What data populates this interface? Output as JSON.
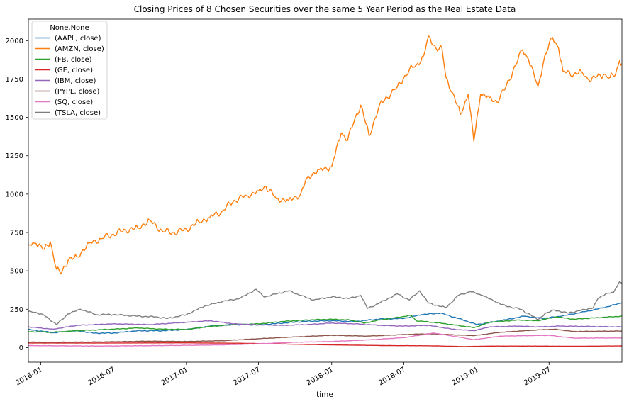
{
  "chart_data": {
    "type": "line",
    "title": "Closing Prices of 8 Chosen Securities over the same 5 Year Period as the Real Estate Data",
    "xlabel": "time",
    "ylabel": "",
    "xlim": [
      "2015-12-01",
      "2019-12-31"
    ],
    "ylim": [
      -95,
      2140
    ],
    "yticks": [
      0,
      250,
      500,
      750,
      1000,
      1250,
      1500,
      1750,
      2000
    ],
    "xticks": [
      "2016-01",
      "2016-07",
      "2017-01",
      "2017-07",
      "2018-01",
      "2018-07",
      "2019-01",
      "2019-07"
    ],
    "grid": false,
    "legend": {
      "title": "None,None",
      "position": "top-left"
    },
    "series": [
      {
        "name": "(AAPL, close)",
        "color": "#1f77b4",
        "points": [
          [
            "2015-12-01",
            118
          ],
          [
            "2016-02-01",
            97
          ],
          [
            "2016-04-01",
            110
          ],
          [
            "2016-05-15",
            94
          ],
          [
            "2016-07-01",
            95
          ],
          [
            "2016-09-01",
            110
          ],
          [
            "2016-11-01",
            110
          ],
          [
            "2017-01-01",
            118
          ],
          [
            "2017-03-01",
            140
          ],
          [
            "2017-05-01",
            150
          ],
          [
            "2017-07-01",
            148
          ],
          [
            "2017-09-01",
            160
          ],
          [
            "2017-11-01",
            172
          ],
          [
            "2018-01-01",
            175
          ],
          [
            "2018-03-01",
            170
          ],
          [
            "2018-05-01",
            186
          ],
          [
            "2018-07-01",
            190
          ],
          [
            "2018-08-15",
            215
          ],
          [
            "2018-10-01",
            225
          ],
          [
            "2018-11-15",
            190
          ],
          [
            "2019-01-01",
            150
          ],
          [
            "2019-03-01",
            175
          ],
          [
            "2019-05-01",
            205
          ],
          [
            "2019-06-15",
            190
          ],
          [
            "2019-08-01",
            205
          ],
          [
            "2019-10-01",
            235
          ],
          [
            "2019-11-15",
            260
          ],
          [
            "2019-12-31",
            292
          ]
        ]
      },
      {
        "name": "(AMZN, close)",
        "color": "#ff7f0e",
        "points": [
          [
            "2015-12-01",
            670
          ],
          [
            "2015-12-20",
            680
          ],
          [
            "2016-01-10",
            640
          ],
          [
            "2016-01-25",
            690
          ],
          [
            "2016-02-10",
            510
          ],
          [
            "2016-02-20",
            480
          ],
          [
            "2016-03-10",
            570
          ],
          [
            "2016-04-01",
            590
          ],
          [
            "2016-05-01",
            680
          ],
          [
            "2016-06-01",
            710
          ],
          [
            "2016-07-01",
            740
          ],
          [
            "2016-08-01",
            765
          ],
          [
            "2016-09-01",
            780
          ],
          [
            "2016-10-01",
            830
          ],
          [
            "2016-11-01",
            760
          ],
          [
            "2016-12-01",
            750
          ],
          [
            "2017-01-01",
            770
          ],
          [
            "2017-02-01",
            820
          ],
          [
            "2017-03-01",
            850
          ],
          [
            "2017-04-01",
            890
          ],
          [
            "2017-05-01",
            960
          ],
          [
            "2017-06-01",
            990
          ],
          [
            "2017-07-01",
            1020
          ],
          [
            "2017-07-20",
            1050
          ],
          [
            "2017-08-15",
            970
          ],
          [
            "2017-09-15",
            960
          ],
          [
            "2017-10-15",
            1000
          ],
          [
            "2017-11-01",
            1110
          ],
          [
            "2017-12-01",
            1160
          ],
          [
            "2018-01-01",
            1180
          ],
          [
            "2018-01-25",
            1400
          ],
          [
            "2018-02-10",
            1350
          ],
          [
            "2018-03-01",
            1500
          ],
          [
            "2018-03-15",
            1580
          ],
          [
            "2018-04-05",
            1380
          ],
          [
            "2018-05-01",
            1580
          ],
          [
            "2018-06-15",
            1700
          ],
          [
            "2018-07-15",
            1810
          ],
          [
            "2018-08-01",
            1840
          ],
          [
            "2018-08-20",
            1900
          ],
          [
            "2018-09-01",
            2030
          ],
          [
            "2018-09-20",
            1950
          ],
          [
            "2018-10-05",
            1950
          ],
          [
            "2018-10-15",
            1760
          ],
          [
            "2018-11-01",
            1660
          ],
          [
            "2018-11-20",
            1520
          ],
          [
            "2018-12-10",
            1650
          ],
          [
            "2018-12-24",
            1345
          ],
          [
            "2019-01-10",
            1650
          ],
          [
            "2019-02-01",
            1630
          ],
          [
            "2019-02-20",
            1600
          ],
          [
            "2019-03-15",
            1700
          ],
          [
            "2019-04-01",
            1800
          ],
          [
            "2019-04-25",
            1940
          ],
          [
            "2019-05-10",
            1880
          ],
          [
            "2019-06-03",
            1700
          ],
          [
            "2019-06-20",
            1900
          ],
          [
            "2019-07-10",
            2020
          ],
          [
            "2019-07-25",
            1950
          ],
          [
            "2019-08-05",
            1800
          ],
          [
            "2019-09-01",
            1780
          ],
          [
            "2019-09-20",
            1800
          ],
          [
            "2019-10-10",
            1740
          ],
          [
            "2019-10-25",
            1760
          ],
          [
            "2019-11-15",
            1780
          ],
          [
            "2019-12-01",
            1760
          ],
          [
            "2019-12-15",
            1780
          ],
          [
            "2019-12-25",
            1870
          ],
          [
            "2019-12-31",
            1850
          ]
        ]
      },
      {
        "name": "(FB, close)",
        "color": "#2ca02c",
        "points": [
          [
            "2015-12-01",
            104
          ],
          [
            "2016-02-01",
            100
          ],
          [
            "2016-04-01",
            110
          ],
          [
            "2016-07-01",
            120
          ],
          [
            "2016-09-01",
            128
          ],
          [
            "2016-11-01",
            120
          ],
          [
            "2017-01-01",
            118
          ],
          [
            "2017-03-01",
            138
          ],
          [
            "2017-05-01",
            150
          ],
          [
            "2017-07-01",
            155
          ],
          [
            "2017-09-01",
            170
          ],
          [
            "2017-11-01",
            180
          ],
          [
            "2018-01-01",
            185
          ],
          [
            "2018-02-15",
            180
          ],
          [
            "2018-03-25",
            160
          ],
          [
            "2018-05-01",
            180
          ],
          [
            "2018-07-20",
            210
          ],
          [
            "2018-08-01",
            175
          ],
          [
            "2018-10-01",
            160
          ],
          [
            "2018-12-25",
            130
          ],
          [
            "2019-02-01",
            165
          ],
          [
            "2019-04-15",
            180
          ],
          [
            "2019-06-01",
            175
          ],
          [
            "2019-07-20",
            200
          ],
          [
            "2019-09-01",
            185
          ],
          [
            "2019-11-01",
            195
          ],
          [
            "2019-12-31",
            205
          ]
        ]
      },
      {
        "name": "(GE, close)",
        "color": "#d62728",
        "points": [
          [
            "2015-12-01",
            30
          ],
          [
            "2016-06-01",
            30
          ],
          [
            "2017-01-01",
            31
          ],
          [
            "2017-06-01",
            28
          ],
          [
            "2017-10-01",
            22
          ],
          [
            "2018-01-01",
            18
          ],
          [
            "2018-06-01",
            13
          ],
          [
            "2018-09-01",
            12
          ],
          [
            "2018-12-01",
            7
          ],
          [
            "2019-02-01",
            10
          ],
          [
            "2019-06-01",
            10
          ],
          [
            "2019-09-01",
            9
          ],
          [
            "2019-12-31",
            11
          ]
        ]
      },
      {
        "name": "(IBM, close)",
        "color": "#9467bd",
        "points": [
          [
            "2015-12-01",
            135
          ],
          [
            "2016-02-01",
            120
          ],
          [
            "2016-04-01",
            145
          ],
          [
            "2016-07-01",
            155
          ],
          [
            "2016-10-01",
            150
          ],
          [
            "2017-01-01",
            165
          ],
          [
            "2017-03-01",
            175
          ],
          [
            "2017-05-01",
            155
          ],
          [
            "2017-07-01",
            148
          ],
          [
            "2017-09-01",
            145
          ],
          [
            "2017-11-01",
            150
          ],
          [
            "2018-01-01",
            160
          ],
          [
            "2018-03-01",
            155
          ],
          [
            "2018-05-01",
            145
          ],
          [
            "2018-07-01",
            140
          ],
          [
            "2018-09-01",
            145
          ],
          [
            "2018-11-01",
            120
          ],
          [
            "2018-12-25",
            110
          ],
          [
            "2019-02-01",
            135
          ],
          [
            "2019-04-15",
            140
          ],
          [
            "2019-06-01",
            135
          ],
          [
            "2019-08-01",
            140
          ],
          [
            "2019-10-01",
            138
          ],
          [
            "2019-12-31",
            135
          ]
        ]
      },
      {
        "name": "(PYPL, close)",
        "color": "#8c564b",
        "points": [
          [
            "2015-12-01",
            36
          ],
          [
            "2016-02-01",
            35
          ],
          [
            "2016-06-01",
            37
          ],
          [
            "2016-10-01",
            42
          ],
          [
            "2017-01-01",
            40
          ],
          [
            "2017-04-01",
            45
          ],
          [
            "2017-07-01",
            58
          ],
          [
            "2017-10-01",
            70
          ],
          [
            "2018-01-01",
            80
          ],
          [
            "2018-04-01",
            75
          ],
          [
            "2018-07-01",
            85
          ],
          [
            "2018-09-01",
            90
          ],
          [
            "2018-12-25",
            78
          ],
          [
            "2019-03-01",
            100
          ],
          [
            "2019-06-01",
            115
          ],
          [
            "2019-07-15",
            120
          ],
          [
            "2019-09-01",
            105
          ],
          [
            "2019-12-31",
            108
          ]
        ]
      },
      {
        "name": "(SQ, close)",
        "color": "#e377c2",
        "points": [
          [
            "2015-12-01",
            13
          ],
          [
            "2016-06-01",
            10
          ],
          [
            "2016-12-01",
            14
          ],
          [
            "2017-04-01",
            18
          ],
          [
            "2017-07-01",
            25
          ],
          [
            "2017-10-01",
            35
          ],
          [
            "2018-01-01",
            40
          ],
          [
            "2018-04-01",
            50
          ],
          [
            "2018-07-01",
            65
          ],
          [
            "2018-09-15",
            95
          ],
          [
            "2018-12-25",
            52
          ],
          [
            "2019-03-01",
            75
          ],
          [
            "2019-07-01",
            80
          ],
          [
            "2019-09-01",
            62
          ],
          [
            "2019-12-31",
            63
          ]
        ]
      },
      {
        "name": "(TSLA, close)",
        "color": "#7f7f7f",
        "points": [
          [
            "2015-12-01",
            235
          ],
          [
            "2015-12-20",
            230
          ],
          [
            "2016-01-10",
            210
          ],
          [
            "2016-02-10",
            150
          ],
          [
            "2016-03-10",
            220
          ],
          [
            "2016-04-10",
            250
          ],
          [
            "2016-05-20",
            215
          ],
          [
            "2016-07-01",
            215
          ],
          [
            "2016-09-01",
            205
          ],
          [
            "2016-10-15",
            200
          ],
          [
            "2016-11-15",
            190
          ],
          [
            "2017-01-01",
            215
          ],
          [
            "2017-02-15",
            270
          ],
          [
            "2017-04-01",
            300
          ],
          [
            "2017-05-15",
            320
          ],
          [
            "2017-06-25",
            380
          ],
          [
            "2017-07-15",
            330
          ],
          [
            "2017-08-15",
            350
          ],
          [
            "2017-09-15",
            370
          ],
          [
            "2017-10-15",
            340
          ],
          [
            "2017-11-15",
            310
          ],
          [
            "2018-01-01",
            330
          ],
          [
            "2018-02-15",
            320
          ],
          [
            "2018-03-15",
            340
          ],
          [
            "2018-04-01",
            255
          ],
          [
            "2018-05-01",
            290
          ],
          [
            "2018-06-15",
            350
          ],
          [
            "2018-07-15",
            310
          ],
          [
            "2018-08-10",
            370
          ],
          [
            "2018-09-01",
            290
          ],
          [
            "2018-10-15",
            260
          ],
          [
            "2018-11-15",
            340
          ],
          [
            "2018-12-15",
            365
          ],
          [
            "2019-01-15",
            340
          ],
          [
            "2019-02-15",
            300
          ],
          [
            "2019-03-15",
            270
          ],
          [
            "2019-04-15",
            255
          ],
          [
            "2019-05-15",
            215
          ],
          [
            "2019-06-03",
            180
          ],
          [
            "2019-06-20",
            220
          ],
          [
            "2019-07-15",
            245
          ],
          [
            "2019-08-15",
            225
          ],
          [
            "2019-09-15",
            240
          ],
          [
            "2019-10-20",
            260
          ],
          [
            "2019-11-01",
            320
          ],
          [
            "2019-11-20",
            350
          ],
          [
            "2019-12-10",
            360
          ],
          [
            "2019-12-25",
            430
          ],
          [
            "2019-12-31",
            420
          ]
        ]
      }
    ]
  }
}
